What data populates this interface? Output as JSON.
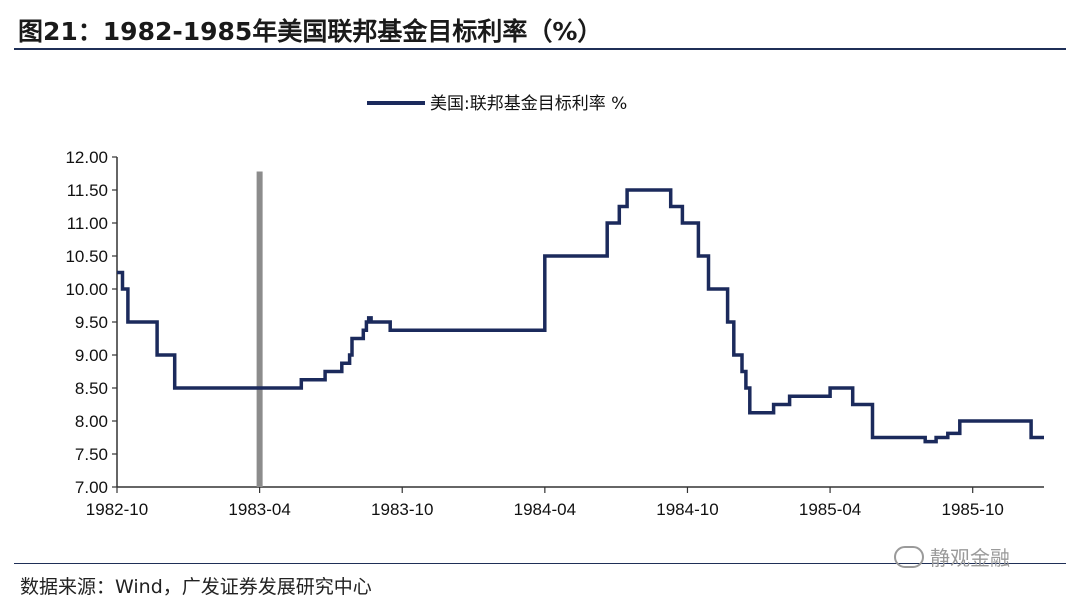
{
  "header": {
    "title": "图21：1982-1985年美国联邦基金目标利率（%）"
  },
  "footer": {
    "source": "数据来源：Wind，广发证券发展研究中心",
    "watermark": "静观金融"
  },
  "colors": {
    "series": "#1b2a5c",
    "marker": "#8c8c8c",
    "axis": "#333333"
  },
  "chart_data": {
    "type": "line",
    "title": "",
    "xlabel": "",
    "ylabel": "",
    "ylim": [
      7.0,
      12.0
    ],
    "yticks": [
      "12.00",
      "11.50",
      "11.00",
      "10.50",
      "10.00",
      "9.50",
      "9.00",
      "8.50",
      "8.00",
      "7.50",
      "7.00"
    ],
    "xlim": [
      "1982-10",
      "1986-01"
    ],
    "xticks": [
      "1982-10",
      "1983-04",
      "1983-10",
      "1984-04",
      "1984-10",
      "1985-04",
      "1985-10"
    ],
    "legend": {
      "position": "top-center",
      "entries": [
        "美国:联邦基金目标利率 %"
      ]
    },
    "grid": false,
    "marker_line": {
      "x": "1983-04",
      "style": "vertical-bar"
    },
    "series": [
      {
        "name": "美国:联邦基金目标利率 %",
        "step": true,
        "x": [
          "1982-10-01",
          "1982-10-08",
          "1982-10-15",
          "1982-11-22",
          "1982-12-14",
          "1983-02-01",
          "1983-05-24",
          "1983-06-24",
          "1983-07-15",
          "1983-07-25",
          "1983-07-28",
          "1983-08-12",
          "1983-08-16",
          "1983-08-19",
          "1983-08-22",
          "1983-09-01",
          "1983-09-16",
          "1983-10-10",
          "1984-04-01",
          "1984-06-20",
          "1984-07-05",
          "1984-07-15",
          "1984-08-20",
          "1984-09-10",
          "1984-09-25",
          "1984-10-01",
          "1984-10-15",
          "1984-10-28",
          "1984-11-05",
          "1984-11-22",
          "1984-11-30",
          "1984-12-10",
          "1984-12-15",
          "1984-12-20",
          "1985-01-20",
          "1985-02-10",
          "1985-04-01",
          "1985-04-30",
          "1985-05-25",
          "1985-07-20",
          "1985-08-01",
          "1985-08-15",
          "1985-08-30",
          "1985-09-15",
          "1985-12-15",
          "1986-01-01"
        ],
        "values": [
          10.25,
          10.0,
          9.5,
          9.0,
          8.5,
          8.5,
          8.625,
          8.75,
          8.875,
          9.0,
          9.25,
          9.375,
          9.5,
          9.5625,
          9.5,
          9.5,
          9.375,
          9.375,
          10.5,
          11.0,
          11.25,
          11.5,
          11.5,
          11.25,
          11.0,
          11.0,
          10.5,
          10.0,
          10.0,
          9.5,
          9.0,
          8.75,
          8.5,
          8.125,
          8.25,
          8.375,
          8.5,
          8.25,
          7.75,
          7.75,
          7.6875,
          7.75,
          7.8125,
          8.0,
          7.75,
          7.75
        ]
      }
    ]
  }
}
